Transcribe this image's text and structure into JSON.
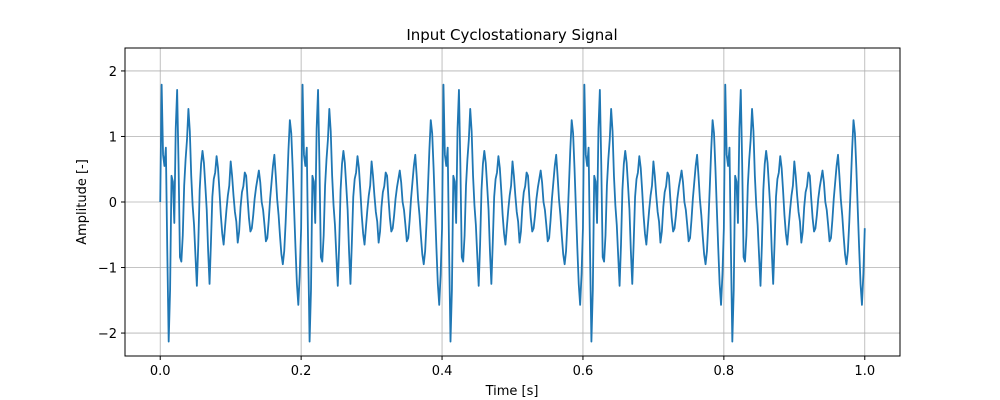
{
  "chart_data": {
    "type": "line",
    "title": "Input Cyclostationary Signal",
    "xlabel": "Time [s]",
    "ylabel": "Amplitude [-]",
    "xlim": [
      -0.05,
      1.05
    ],
    "ylim": [
      -2.35,
      2.35
    ],
    "xticks": [
      0.0,
      0.2,
      0.4,
      0.6,
      0.8,
      1.0
    ],
    "xtick_labels": [
      "0.0",
      "0.2",
      "0.4",
      "0.6",
      "0.8",
      "1.0"
    ],
    "yticks": [
      -2,
      -1,
      0,
      1,
      2
    ],
    "ytick_labels": [
      "−2",
      "−1",
      "0",
      "1",
      "2"
    ],
    "grid": true,
    "legend": "none",
    "line_color": "#1f77b4",
    "series": [
      {
        "x": [
          0.0,
          0.002,
          0.004,
          0.006,
          0.008,
          0.01,
          0.012,
          0.014,
          0.016,
          0.018,
          0.02,
          0.022,
          0.024,
          0.026,
          0.028,
          0.03,
          0.032,
          0.034,
          0.036,
          0.038,
          0.04,
          0.042,
          0.044,
          0.046,
          0.048,
          0.05,
          0.052,
          0.054,
          0.056,
          0.058,
          0.06,
          0.062,
          0.064,
          0.066,
          0.068,
          0.07,
          0.072,
          0.074,
          0.076,
          0.078,
          0.08,
          0.082,
          0.084,
          0.086,
          0.088,
          0.09,
          0.092,
          0.094,
          0.096,
          0.098,
          0.1,
          0.102,
          0.104,
          0.106,
          0.108,
          0.11,
          0.112,
          0.114,
          0.116,
          0.118,
          0.12,
          0.122,
          0.124,
          0.126,
          0.128,
          0.13,
          0.132,
          0.134,
          0.136,
          0.138,
          0.14,
          0.142,
          0.144,
          0.146,
          0.148,
          0.15,
          0.152,
          0.154,
          0.156,
          0.158,
          0.16,
          0.162,
          0.164,
          0.166,
          0.168,
          0.17,
          0.172,
          0.174,
          0.176,
          0.178,
          0.18,
          0.182,
          0.184,
          0.186,
          0.188,
          0.19,
          0.192,
          0.194,
          0.196,
          0.198,
          0.2
        ],
        "y": [
          0.0,
          1.79,
          0.72,
          0.55,
          0.83,
          -0.73,
          -2.13,
          -1.34,
          0.4,
          0.31,
          -0.32,
          1.12,
          1.71,
          0.57,
          -0.84,
          -0.91,
          -0.51,
          0.25,
          0.65,
          0.95,
          1.42,
          1.08,
          0.4,
          -0.05,
          -0.35,
          -0.82,
          -1.28,
          -0.65,
          0.18,
          0.58,
          0.78,
          0.6,
          0.25,
          -0.12,
          -0.75,
          -1.25,
          -0.62,
          0.08,
          0.35,
          0.45,
          0.7,
          0.52,
          0.18,
          -0.2,
          -0.48,
          -0.65,
          -0.38,
          -0.12,
          0.1,
          0.25,
          0.62,
          0.4,
          0.1,
          -0.15,
          -0.3,
          -0.62,
          -0.45,
          -0.08,
          0.15,
          0.24,
          0.45,
          0.4,
          0.05,
          -0.25,
          -0.45,
          -0.4,
          -0.2,
          0.05,
          0.22,
          0.35,
          0.48,
          0.3,
          0.0,
          -0.12,
          -0.35,
          -0.6,
          -0.55,
          -0.28,
          0.05,
          0.3,
          0.55,
          0.72,
          0.4,
          0.04,
          -0.2,
          -0.52,
          -0.8,
          -0.95,
          -0.75,
          -0.31,
          0.22,
          0.79,
          1.25,
          1.05,
          0.52,
          -0.1,
          -0.7,
          -1.25,
          -1.57,
          -1.1,
          -0.4
        ]
      }
    ],
    "periodic": {
      "period": 0.2,
      "start": 0.0,
      "end": 1.0
    }
  }
}
